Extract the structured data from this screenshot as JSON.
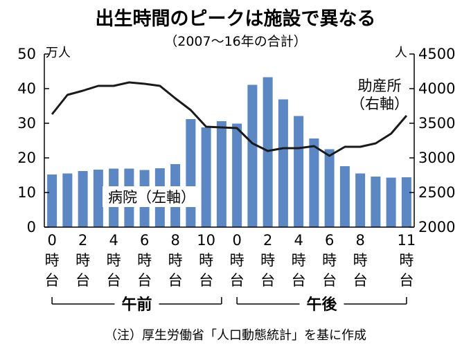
{
  "title": "出生時間のピークは施設で異なる",
  "subtitle": "（2007～16年の合計）",
  "note": "（注）厚生労働省「人口動態統計」を基に作成",
  "colors": {
    "bar": "#5b88c4",
    "line": "#1a1a1a",
    "axis": "#000000",
    "text": "#000000"
  },
  "chart_data": {
    "type": "bar",
    "categories": [
      "午前0時台",
      "午前1時台",
      "午前2時台",
      "午前3時台",
      "午前4時台",
      "午前5時台",
      "午前6時台",
      "午前7時台",
      "午前8時台",
      "午前9時台",
      "午前10時台",
      "午前11時台",
      "午後0時台",
      "午後1時台",
      "午後2時台",
      "午後3時台",
      "午後4時台",
      "午後5時台",
      "午後6時台",
      "午後7時台",
      "午後8時台",
      "午後9時台",
      "午後10時台",
      "午後11時台"
    ],
    "x_tick_labels": [
      {
        "index": 0,
        "num": "0",
        "ji": "時",
        "dai": "台"
      },
      {
        "index": 2,
        "num": "2",
        "ji": "時",
        "dai": "台"
      },
      {
        "index": 4,
        "num": "4",
        "ji": "時",
        "dai": "台"
      },
      {
        "index": 6,
        "num": "6",
        "ji": "時",
        "dai": "台"
      },
      {
        "index": 8,
        "num": "8",
        "ji": "時",
        "dai": "台"
      },
      {
        "index": 10,
        "num": "10",
        "ji": "時",
        "dai": "台"
      },
      {
        "index": 12,
        "num": "0",
        "ji": "時",
        "dai": "台"
      },
      {
        "index": 14,
        "num": "2",
        "ji": "時",
        "dai": "台"
      },
      {
        "index": 16,
        "num": "4",
        "ji": "時",
        "dai": "台"
      },
      {
        "index": 18,
        "num": "6",
        "ji": "時",
        "dai": "台"
      },
      {
        "index": 20,
        "num": "8",
        "ji": "時",
        "dai": "台"
      },
      {
        "index": 23,
        "num": "11",
        "ji": "時",
        "dai": "台"
      }
    ],
    "periods": [
      {
        "label": "午前",
        "from": 0,
        "to": 11
      },
      {
        "label": "午後",
        "from": 12,
        "to": 23
      }
    ],
    "series": [
      {
        "name": "病院（左軸）",
        "type": "bar",
        "axis": "left",
        "values": [
          15.2,
          15.5,
          16.2,
          16.6,
          16.9,
          16.9,
          16.5,
          17.0,
          18.2,
          31.2,
          28.8,
          30.6,
          29.9,
          41.1,
          43.3,
          36.9,
          32.1,
          25.6,
          22.5,
          17.6,
          15.5,
          14.6,
          14.3,
          14.4
        ]
      },
      {
        "name": "助産所（右軸）",
        "type": "line",
        "axis": "right",
        "values": [
          3630,
          3910,
          3970,
          4040,
          4040,
          4090,
          4070,
          4040,
          3860,
          3690,
          3450,
          3440,
          3430,
          3210,
          3100,
          3140,
          3140,
          3170,
          3030,
          3160,
          3160,
          3210,
          3350,
          3610
        ]
      }
    ],
    "y_left": {
      "unit": "万人",
      "min": 0,
      "max": 50,
      "ticks": [
        0,
        10,
        20,
        30,
        40,
        50
      ]
    },
    "y_right": {
      "unit": "人",
      "min": 2000,
      "max": 4500,
      "ticks": [
        2000,
        2500,
        3000,
        3500,
        4000,
        4500
      ]
    },
    "grid": false,
    "legend": "inline-labels"
  }
}
